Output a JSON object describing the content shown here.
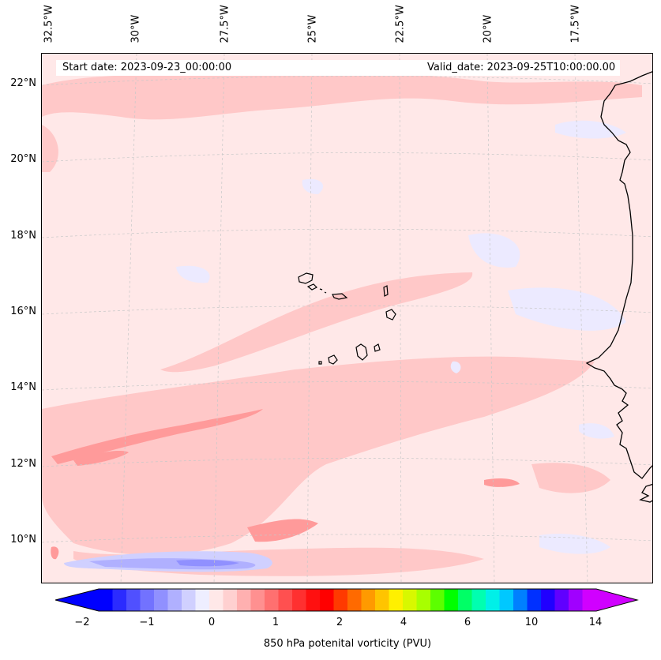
{
  "map": {
    "start_date": "Start date: 2023-09-23_00:00:00",
    "valid_date": "Valid_date: 2023-09-25T10:00:00.00",
    "longitude_labels": [
      "32.5°W",
      "30°W",
      "27.5°W",
      "25°W",
      "22.5°W",
      "20°W",
      "17.5°W"
    ],
    "latitude_labels": [
      "22°N",
      "20°N",
      "18°N",
      "16°N",
      "14°N",
      "12°N",
      "10°N"
    ],
    "extent": {
      "lon_min": -32.5,
      "lon_max": -15.2,
      "lat_min": 8.9,
      "lat_max": 22.8
    }
  },
  "colorbar": {
    "title": "850 hPa potenital vorticity (PVU)",
    "tick_labels": [
      "−2",
      "−1",
      "0",
      "1",
      "2",
      "4",
      "6",
      "10",
      "14"
    ],
    "colors": [
      "#0000ff",
      "#2b2bff",
      "#5050ff",
      "#7272ff",
      "#9090ff",
      "#b0b0ff",
      "#d0d0ff",
      "#eeeeff",
      "#ffe8e8",
      "#ffd0d0",
      "#ffb0b0",
      "#ff9090",
      "#ff7070",
      "#ff5050",
      "#ff3030",
      "#ff1010",
      "#ff0000",
      "#ff3a00",
      "#ff6a00",
      "#ff9a00",
      "#ffc400",
      "#fff000",
      "#d8f800",
      "#a8ff00",
      "#5cff00",
      "#00ff00",
      "#00ff66",
      "#00ffb0",
      "#00f0e8",
      "#00c8ff",
      "#0080ff",
      "#0030ff",
      "#2000ff",
      "#6000ff",
      "#a000ff",
      "#d000ff"
    ],
    "under_color": "#0000ff",
    "over_color": "#d000ff"
  },
  "palette": {
    "background_field": "#ffe8e8",
    "weak_negative": "#eceaff",
    "moderate_positive": "#ffc8c8",
    "strong_positive": "#ff9a9a",
    "negative_band": "#b8b8ff",
    "coast": "#000000",
    "grid": "#c8c8c8"
  }
}
